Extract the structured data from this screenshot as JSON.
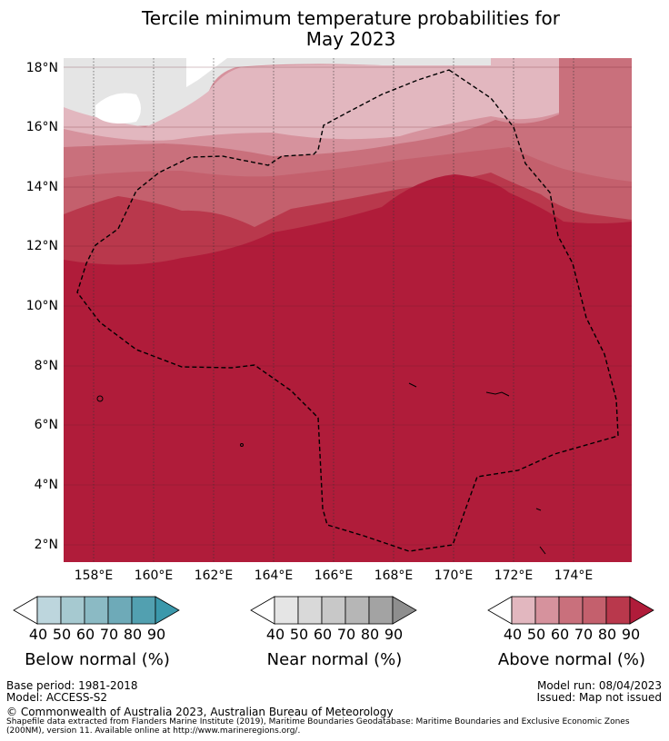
{
  "title": {
    "line1": "Tercile minimum temperature probabilities for",
    "line2": "May 2023"
  },
  "axes": {
    "lat_labels": [
      "18°N",
      "16°N",
      "14°N",
      "12°N",
      "10°N",
      "8°N",
      "6°N",
      "4°N",
      "2°N"
    ],
    "lon_labels": [
      "158°E",
      "160°E",
      "162°E",
      "164°E",
      "166°E",
      "168°E",
      "170°E",
      "172°E",
      "174°E"
    ]
  },
  "colorbars": {
    "below": {
      "label": "Below normal (%)",
      "ticks": [
        "40",
        "50",
        "60",
        "70",
        "80",
        "90"
      ],
      "colors": [
        "#ffffff",
        "#bdd6dd",
        "#a6c9d0",
        "#8bbac4",
        "#6eaab8",
        "#52a0b0",
        "#3b98ab"
      ]
    },
    "near": {
      "label": "Near normal (%)",
      "ticks": [
        "40",
        "50",
        "60",
        "70",
        "80",
        "90"
      ],
      "colors": [
        "#ffffff",
        "#e5e5e5",
        "#d9d9d9",
        "#c8c8c8",
        "#b6b6b6",
        "#a3a3a3",
        "#8e8e8e"
      ]
    },
    "above": {
      "label": "Above normal (%)",
      "ticks": [
        "40",
        "50",
        "60",
        "70",
        "80",
        "90"
      ],
      "colors": [
        "#ffffff",
        "#e2b7bf",
        "#d6929d",
        "#c9707c",
        "#c4606d",
        "#b9384c",
        "#b01c3a"
      ]
    }
  },
  "footer": {
    "base_period": "Base period: 1981-2018",
    "model": "Model: ACCESS-S2",
    "model_run": "Model run: 08/04/2023",
    "issued": "Issued: Map not issued",
    "copyright": "© Commonwealth of Australia 2023, Australian Bureau of Meteorology",
    "shapefile_note": "Shapefile data extracted from Flanders Marine Institute (2019), Maritime Boundaries Geodatabase: Maritime Boundaries and Exclusive Economic Zones (200NM), version 11. Available online at http://www.marineregions.org/."
  }
}
